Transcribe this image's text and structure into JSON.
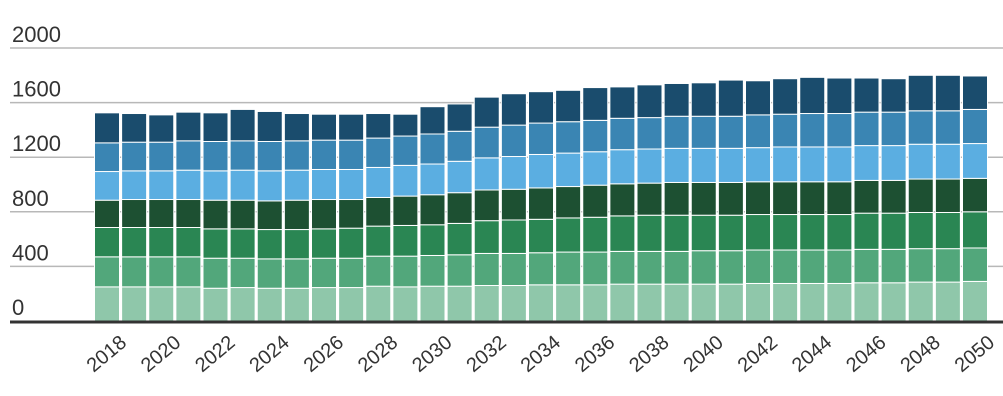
{
  "chart_data": {
    "type": "bar",
    "stacked": true,
    "title": "",
    "xlabel": "",
    "ylabel": "",
    "ylim": [
      0,
      2000
    ],
    "y_ticks": [
      "0",
      "400",
      "800",
      "1200",
      "1600",
      "2000"
    ],
    "grid": true,
    "legend": "none",
    "x_tick_labels": [
      "2018",
      "2020",
      "2022",
      "2024",
      "2026",
      "2028",
      "2030",
      "2032",
      "2034",
      "2036",
      "2038",
      "2040",
      "2042",
      "2044",
      "2046",
      "2048",
      "2050"
    ],
    "categories": [
      "2018",
      "2019",
      "2020",
      "2021",
      "2022",
      "2023",
      "2024",
      "2025",
      "2026",
      "2027",
      "2028",
      "2029",
      "2030",
      "2031",
      "2032",
      "2033",
      "2034",
      "2035",
      "2036",
      "2037",
      "2038",
      "2039",
      "2040",
      "2041",
      "2042",
      "2043",
      "2044",
      "2045",
      "2046",
      "2047",
      "2048",
      "2049",
      "2050"
    ],
    "series": [
      {
        "color": "#8fc7aa",
        "values": [
          250,
          250,
          250,
          250,
          240,
          245,
          240,
          240,
          245,
          245,
          255,
          250,
          255,
          255,
          260,
          260,
          265,
          265,
          265,
          270,
          270,
          270,
          270,
          270,
          275,
          275,
          275,
          275,
          280,
          280,
          285,
          285,
          290
        ]
      },
      {
        "color": "#52a77b",
        "values": [
          220,
          220,
          220,
          220,
          220,
          215,
          215,
          215,
          215,
          215,
          220,
          225,
          225,
          230,
          235,
          235,
          235,
          240,
          240,
          240,
          240,
          240,
          245,
          245,
          245,
          245,
          245,
          245,
          245,
          245,
          245,
          245,
          245
        ]
      },
      {
        "color": "#2a8653",
        "values": [
          215,
          215,
          215,
          215,
          215,
          215,
          215,
          215,
          215,
          220,
          220,
          225,
          225,
          230,
          240,
          245,
          245,
          250,
          255,
          260,
          265,
          265,
          260,
          260,
          260,
          260,
          260,
          260,
          265,
          265,
          265,
          265,
          265
        ]
      },
      {
        "color": "#1d5032",
        "values": [
          200,
          205,
          205,
          205,
          210,
          210,
          210,
          215,
          215,
          210,
          210,
          215,
          220,
          225,
          225,
          225,
          230,
          230,
          235,
          235,
          235,
          240,
          240,
          240,
          240,
          240,
          240,
          240,
          240,
          240,
          245,
          245,
          245
        ]
      },
      {
        "color": "#5baee1",
        "values": [
          210,
          210,
          210,
          215,
          215,
          220,
          220,
          220,
          220,
          220,
          220,
          225,
          225,
          230,
          235,
          240,
          245,
          245,
          245,
          250,
          250,
          250,
          250,
          250,
          250,
          255,
          255,
          255,
          255,
          255,
          255,
          255,
          255
        ]
      },
      {
        "color": "#3a85b3",
        "values": [
          210,
          210,
          210,
          215,
          215,
          215,
          215,
          215,
          215,
          215,
          215,
          215,
          220,
          220,
          225,
          230,
          230,
          230,
          230,
          230,
          230,
          235,
          235,
          235,
          240,
          240,
          245,
          245,
          245,
          245,
          245,
          245,
          250
        ]
      },
      {
        "color": "#1a4c6d",
        "values": [
          220,
          210,
          200,
          210,
          210,
          230,
          220,
          200,
          190,
          190,
          180,
          160,
          200,
          200,
          220,
          230,
          230,
          230,
          240,
          230,
          240,
          240,
          245,
          265,
          250,
          260,
          265,
          260,
          250,
          245,
          260,
          260,
          245
        ]
      }
    ]
  }
}
